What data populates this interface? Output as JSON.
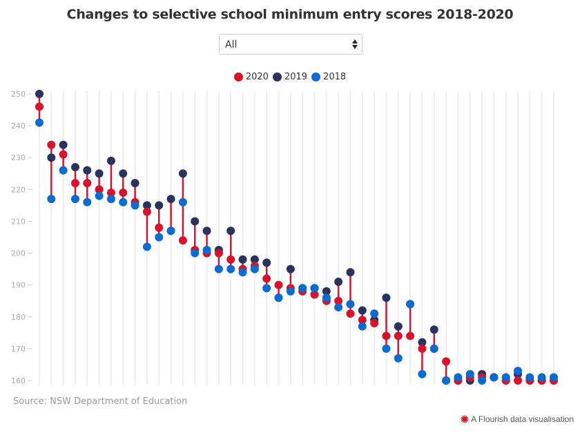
{
  "title": "Changes to selective school minimum entry scores 2018-2020",
  "filter": {
    "selected": "All"
  },
  "legend": [
    {
      "label": "2020",
      "color": "#d7132c"
    },
    {
      "label": "2019",
      "color": "#2a335e"
    },
    {
      "label": "2018",
      "color": "#0a6bd0"
    }
  ],
  "source": "Source: NSW Department of Education",
  "credit": "A Flourish data visualisation",
  "credit_color": "#d7132c",
  "chart_data": {
    "type": "scatter",
    "subtype": "dot-plot / dumbbell",
    "title": "Changes to selective school minimum entry scores 2018-2020",
    "xlabel": "",
    "ylabel": "",
    "ylim": [
      160,
      250
    ],
    "yticks": [
      160,
      170,
      180,
      190,
      200,
      210,
      220,
      230,
      240,
      250
    ],
    "grid": "vertical",
    "legend_position": "top-center",
    "stem_color": "#d7132c",
    "series": [
      {
        "name": "2020",
        "color": "#d7132c",
        "values": [
          246,
          234,
          231,
          222,
          222,
          220,
          219,
          219,
          216,
          213,
          208,
          207,
          204,
          201,
          200,
          200,
          198,
          195,
          196,
          192,
          190,
          189,
          188,
          187,
          185,
          185,
          181,
          179,
          178,
          174,
          174,
          174,
          170,
          170,
          166,
          160,
          161,
          161,
          161,
          160,
          160,
          160,
          160,
          160
        ]
      },
      {
        "name": "2019",
        "color": "#2a335e",
        "values": [
          250,
          230,
          234,
          227,
          226,
          225,
          229,
          225,
          222,
          215,
          215,
          217,
          225,
          210,
          207,
          201,
          207,
          198,
          198,
          197,
          186,
          195,
          189,
          189,
          188,
          191,
          194,
          182,
          179,
          186,
          177,
          184,
          172,
          176,
          160,
          160,
          160,
          162,
          161,
          160,
          162,
          160,
          160,
          160
        ]
      },
      {
        "name": "2018",
        "color": "#0a6bd0",
        "values": [
          241,
          217,
          226,
          217,
          216,
          218,
          217,
          216,
          215,
          202,
          205,
          207,
          216,
          200,
          201,
          195,
          195,
          194,
          195,
          189,
          186,
          188,
          189,
          189,
          186,
          183,
          184,
          177,
          181,
          170,
          167,
          184,
          162,
          170,
          160,
          161,
          162,
          160,
          161,
          161,
          163,
          161,
          161,
          161
        ]
      }
    ],
    "categories_count": 44
  }
}
